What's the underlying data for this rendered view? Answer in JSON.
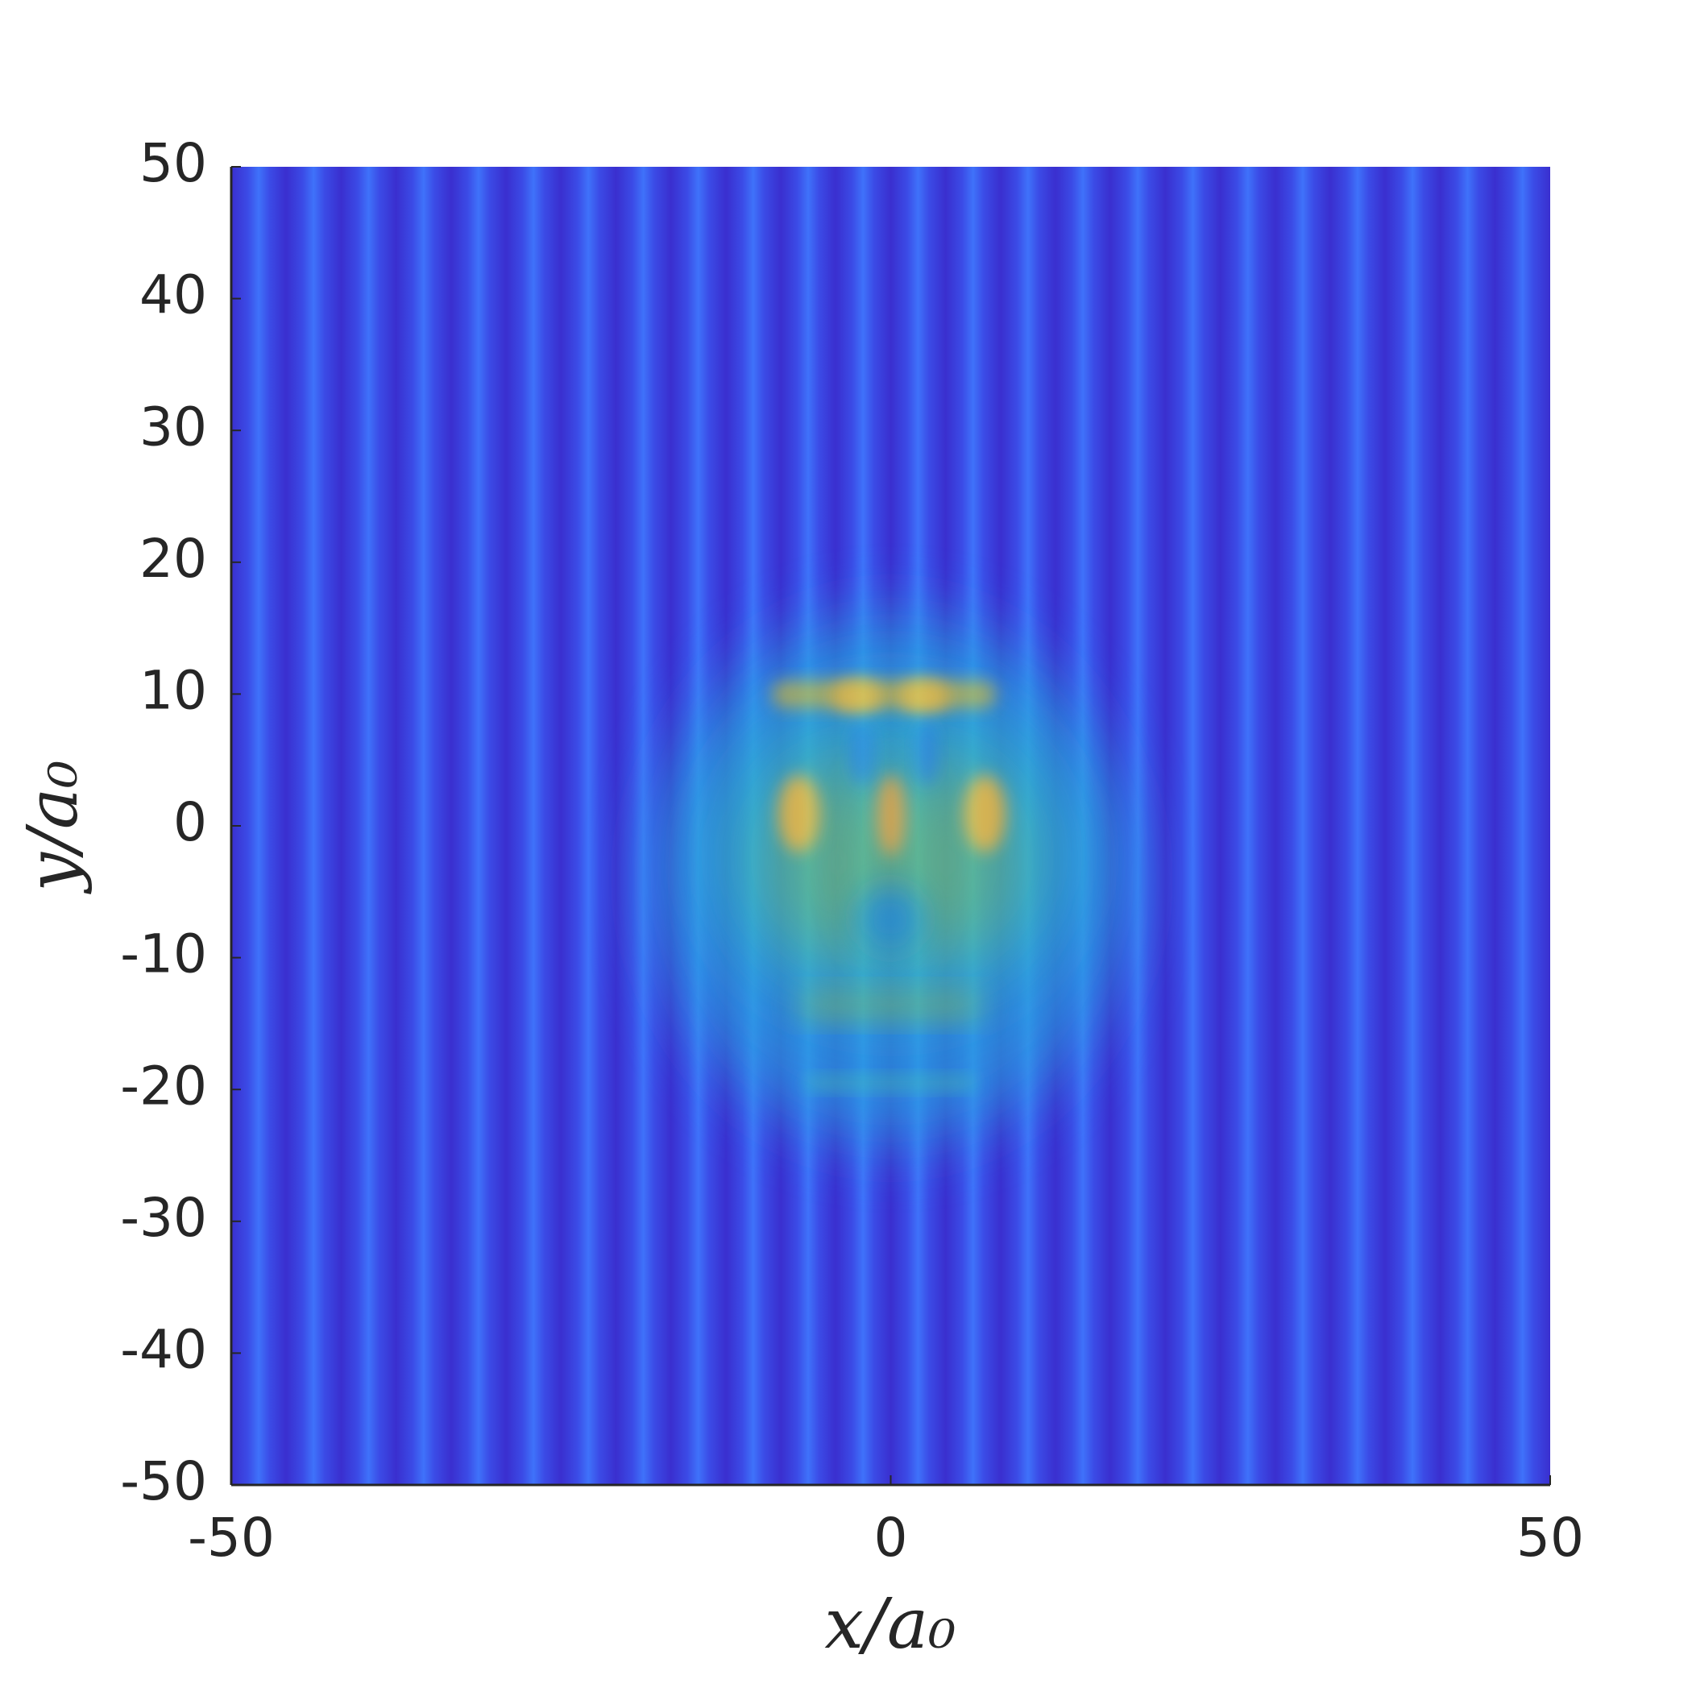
{
  "chart_data": {
    "type": "heatmap",
    "xlabel": "x/a₀",
    "ylabel": "y/a₀",
    "xlim": [
      -50,
      50
    ],
    "ylim": [
      -50,
      50
    ],
    "xticks": [
      -50,
      0,
      50
    ],
    "yticks": [
      -50,
      -40,
      -30,
      -20,
      -10,
      0,
      10,
      20,
      30,
      40,
      50
    ]
  }
}
